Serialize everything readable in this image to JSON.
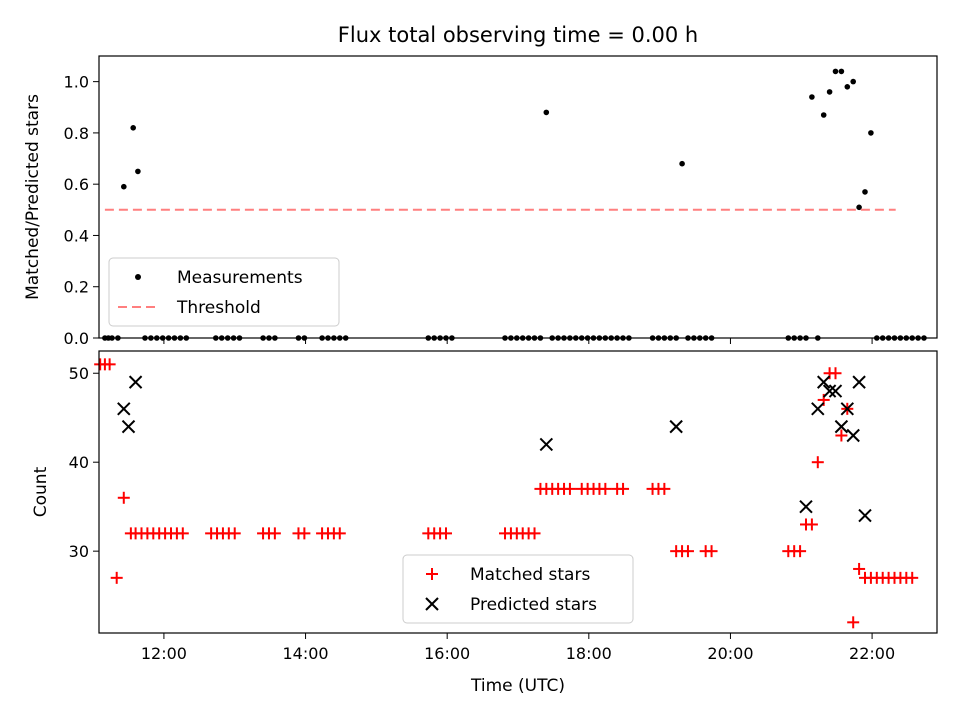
{
  "chart_data": [
    {
      "type": "scatter",
      "title": "Flux total observing time = 0.00 h",
      "xlabel": "",
      "ylabel": "Matched/Predicted stars",
      "xlim": [
        "11:05",
        "22:55"
      ],
      "ylim": [
        0,
        1.1
      ],
      "yticks": [
        "0.0",
        "0.2",
        "0.4",
        "0.6",
        "0.8",
        "1.0"
      ],
      "legend_position": "lower-left",
      "colors": {
        "measurements": "#000000",
        "threshold": "#ff7f7f"
      },
      "series": [
        {
          "name": "Measurements",
          "marker": "dot",
          "x": [
            "11:10",
            "11:13",
            "11:16",
            "11:21",
            "11:26",
            "11:34",
            "11:38",
            "11:44",
            "11:49",
            "11:54",
            "11:59",
            "12:04",
            "12:09",
            "12:14",
            "12:19",
            "12:44",
            "12:49",
            "12:54",
            "12:59",
            "13:04",
            "13:24",
            "13:29",
            "13:34",
            "13:54",
            "13:59",
            "14:14",
            "14:19",
            "14:24",
            "14:29",
            "14:34",
            "15:44",
            "15:49",
            "15:54",
            "15:59",
            "16:04",
            "16:49",
            "16:54",
            "16:59",
            "17:04",
            "17:09",
            "17:14",
            "17:19",
            "17:24",
            "17:29",
            "17:34",
            "17:39",
            "17:44",
            "17:49",
            "17:54",
            "17:59",
            "18:04",
            "18:09",
            "18:14",
            "18:19",
            "18:24",
            "18:29",
            "18:34",
            "18:54",
            "18:59",
            "19:04",
            "19:09",
            "19:14",
            "19:19",
            "19:24",
            "19:29",
            "19:34",
            "19:39",
            "19:44",
            "20:49",
            "20:54",
            "20:59",
            "21:04",
            "21:09",
            "21:14",
            "21:19",
            "21:24",
            "21:29",
            "21:34",
            "21:39",
            "21:44",
            "21:49",
            "21:54",
            "21:59",
            "22:04",
            "22:09",
            "22:14",
            "22:19",
            "22:24",
            "22:29",
            "22:34",
            "22:39",
            "22:44"
          ],
          "y": [
            0,
            0,
            0,
            0,
            0.59,
            0.82,
            0.65,
            0,
            0,
            0,
            0,
            0,
            0,
            0,
            0,
            0,
            0,
            0,
            0,
            0,
            0,
            0,
            0,
            0,
            0,
            0,
            0,
            0,
            0,
            0,
            0,
            0,
            0,
            0,
            0,
            0,
            0,
            0,
            0,
            0,
            0,
            0,
            0.88,
            0,
            0,
            0,
            0,
            0,
            0,
            0,
            0,
            0,
            0,
            0,
            0,
            0,
            0,
            0,
            0,
            0,
            0,
            0,
            0.68,
            0,
            0,
            0,
            0,
            0,
            0,
            0,
            0,
            0,
            0.94,
            0,
            0.87,
            0.96,
            1.04,
            1.04,
            0.98,
            1.0,
            0.51,
            0.57,
            0.8,
            0,
            0,
            0,
            0,
            0,
            0,
            0,
            0,
            0
          ]
        },
        {
          "name": "Threshold",
          "line_style": "dashed",
          "x": [
            "11:10",
            "22:20"
          ],
          "y": [
            0.5,
            0.5
          ]
        }
      ]
    },
    {
      "type": "scatter",
      "title": "",
      "xlabel": "Time (UTC)",
      "ylabel": "Count",
      "xlim": [
        "11:05",
        "22:55"
      ],
      "ylim": [
        20.8,
        52.5
      ],
      "yticks": [
        "30",
        "40",
        "50"
      ],
      "xticks": [
        "12:00",
        "14:00",
        "16:00",
        "18:00",
        "20:00",
        "22:00"
      ],
      "legend_position": "lower-center",
      "colors": {
        "matched": "#ff0000",
        "predicted": "#000000"
      },
      "series": [
        {
          "name": "Matched stars",
          "marker": "plus",
          "x": [
            "11:06",
            "11:10",
            "11:14",
            "11:20",
            "11:26",
            "11:32",
            "11:36",
            "11:41",
            "11:46",
            "11:51",
            "11:56",
            "12:01",
            "12:06",
            "12:11",
            "12:16",
            "12:40",
            "12:45",
            "12:50",
            "12:55",
            "13:00",
            "13:24",
            "13:29",
            "13:34",
            "13:54",
            "13:59",
            "14:14",
            "14:19",
            "14:24",
            "14:29",
            "15:44",
            "15:49",
            "15:54",
            "15:59",
            "16:49",
            "16:54",
            "16:59",
            "17:04",
            "17:09",
            "17:14",
            "17:19",
            "17:24",
            "17:29",
            "17:34",
            "17:39",
            "17:44",
            "17:54",
            "17:59",
            "18:04",
            "18:09",
            "18:14",
            "18:24",
            "18:29",
            "18:54",
            "18:59",
            "19:04",
            "19:14",
            "19:19",
            "19:24",
            "19:39",
            "19:44",
            "20:49",
            "20:54",
            "20:59",
            "21:04",
            "21:09",
            "21:14",
            "21:19",
            "21:24",
            "21:29",
            "21:34",
            "21:39",
            "21:44",
            "21:49",
            "21:54",
            "21:59",
            "22:04",
            "22:09",
            "22:14",
            "22:19",
            "22:24",
            "22:29",
            "22:34"
          ],
          "y": [
            51,
            51,
            51,
            27,
            36,
            32,
            32,
            32,
            32,
            32,
            32,
            32,
            32,
            32,
            32,
            32,
            32,
            32,
            32,
            32,
            32,
            32,
            32,
            32,
            32,
            32,
            32,
            32,
            32,
            32,
            32,
            32,
            32,
            32,
            32,
            32,
            32,
            32,
            32,
            37,
            37,
            37,
            37,
            37,
            37,
            37,
            37,
            37,
            37,
            37,
            37,
            37,
            37,
            37,
            37,
            30,
            30,
            30,
            30,
            30,
            30,
            30,
            30,
            33,
            33,
            40,
            47,
            50,
            50,
            43,
            46,
            22,
            28,
            27,
            27,
            27,
            27,
            27,
            27,
            27,
            27,
            27
          ]
        },
        {
          "name": "Predicted stars",
          "marker": "x",
          "x": [
            "11:26",
            "11:30",
            "11:36",
            "17:24",
            "19:14",
            "21:04",
            "21:14",
            "21:19",
            "21:24",
            "21:29",
            "21:34",
            "21:39",
            "21:44",
            "21:49",
            "21:54"
          ],
          "y": [
            46,
            44,
            49,
            42,
            44,
            35,
            46,
            49,
            48,
            48,
            44,
            46,
            43,
            49,
            34
          ]
        }
      ]
    }
  ]
}
